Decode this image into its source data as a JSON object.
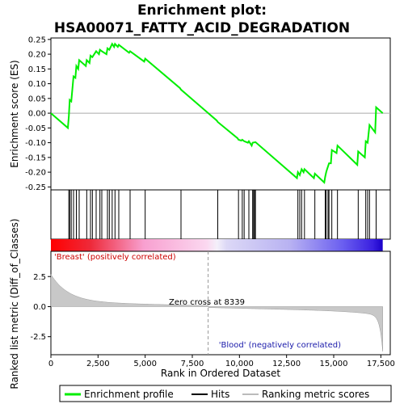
{
  "chart_data": {
    "type": "line",
    "title_line1": "Enrichment plot:",
    "title_line2": "HSA00071_FATTY_ACID_DEGRADATION",
    "xlabel": "Rank in Ordered Dataset",
    "ylabel_top": "Enrichment score (ES)",
    "ylabel_bottom": "Ranked list metric (Diff_of_Classes)",
    "xlim": [
      0,
      18000
    ],
    "x_ticks": [
      0,
      2500,
      5000,
      7500,
      10000,
      12500,
      15000,
      17500
    ],
    "x_tick_labels": [
      "0",
      "2,500",
      "5,000",
      "7,500",
      "10,000",
      "12,500",
      "15,000",
      "17,500"
    ],
    "es_ylim": [
      -0.26,
      0.255
    ],
    "es_ticks": [
      -0.25,
      -0.2,
      -0.15,
      -0.1,
      -0.05,
      0.0,
      0.05,
      0.1,
      0.15,
      0.2,
      0.25
    ],
    "es_tick_labels": [
      "-0.25",
      "-0.20",
      "-0.15",
      "-0.10",
      "-0.05",
      "0.00",
      "0.05",
      "0.10",
      "0.15",
      "0.20",
      "0.25"
    ],
    "metric_ylim": [
      -4.0,
      4.6
    ],
    "metric_ticks": [
      -2.5,
      0.0,
      2.5
    ],
    "metric_tick_labels": [
      "-2.5",
      "0.0",
      "2.5"
    ],
    "n_genes": 17600,
    "zero_cross_label": "Zero cross at 8339",
    "zero_cross": 8339,
    "pos_label": "'Breast' (positively correlated)",
    "neg_label": "'Blood' (negatively correlated)",
    "hits": [
      950,
      1000,
      1080,
      1200,
      1350,
      1500,
      1900,
      2100,
      2200,
      2400,
      2600,
      2700,
      3000,
      3100,
      3250,
      3400,
      3600,
      4200,
      5000,
      6900,
      8850,
      9950,
      10150,
      10250,
      10500,
      10700,
      10750,
      10800,
      10850,
      13100,
      13200,
      13300,
      13450,
      14000,
      14550,
      14600,
      14700,
      14750,
      14900,
      15200,
      16300,
      16700,
      16800,
      16900,
      17250
    ],
    "es_curve": [
      [
        0,
        0.0
      ],
      [
        900,
        -0.05
      ],
      [
        950,
        -0.01
      ],
      [
        1000,
        0.045
      ],
      [
        1080,
        0.04
      ],
      [
        1200,
        0.125
      ],
      [
        1300,
        0.12
      ],
      [
        1350,
        0.16
      ],
      [
        1450,
        0.15
      ],
      [
        1500,
        0.18
      ],
      [
        1850,
        0.16
      ],
      [
        1900,
        0.18
      ],
      [
        2050,
        0.17
      ],
      [
        2100,
        0.195
      ],
      [
        2200,
        0.19
      ],
      [
        2400,
        0.21
      ],
      [
        2550,
        0.2
      ],
      [
        2600,
        0.215
      ],
      [
        2700,
        0.21
      ],
      [
        2950,
        0.2
      ],
      [
        3000,
        0.22
      ],
      [
        3100,
        0.215
      ],
      [
        3250,
        0.235
      ],
      [
        3350,
        0.225
      ],
      [
        3400,
        0.235
      ],
      [
        3550,
        0.225
      ],
      [
        3600,
        0.232
      ],
      [
        4150,
        0.205
      ],
      [
        4200,
        0.21
      ],
      [
        4950,
        0.175
      ],
      [
        5000,
        0.185
      ],
      [
        6850,
        0.085
      ],
      [
        6900,
        0.08
      ],
      [
        8800,
        -0.025
      ],
      [
        8850,
        -0.03
      ],
      [
        9900,
        -0.085
      ],
      [
        9950,
        -0.09
      ],
      [
        10100,
        -0.093
      ],
      [
        10150,
        -0.09
      ],
      [
        10250,
        -0.095
      ],
      [
        10450,
        -0.1
      ],
      [
        10500,
        -0.095
      ],
      [
        10650,
        -0.11
      ],
      [
        10700,
        -0.1
      ],
      [
        10850,
        -0.098
      ],
      [
        13050,
        -0.22
      ],
      [
        13100,
        -0.2
      ],
      [
        13200,
        -0.21
      ],
      [
        13300,
        -0.19
      ],
      [
        13400,
        -0.2
      ],
      [
        13450,
        -0.19
      ],
      [
        13950,
        -0.22
      ],
      [
        14000,
        -0.205
      ],
      [
        14500,
        -0.235
      ],
      [
        14550,
        -0.215
      ],
      [
        14600,
        -0.2
      ],
      [
        14650,
        -0.19
      ],
      [
        14700,
        -0.18
      ],
      [
        14750,
        -0.17
      ],
      [
        14850,
        -0.17
      ],
      [
        14900,
        -0.125
      ],
      [
        15150,
        -0.135
      ],
      [
        15200,
        -0.11
      ],
      [
        16250,
        -0.175
      ],
      [
        16300,
        -0.13
      ],
      [
        16650,
        -0.15
      ],
      [
        16700,
        -0.095
      ],
      [
        16800,
        -0.1
      ],
      [
        16900,
        -0.04
      ],
      [
        17200,
        -0.065
      ],
      [
        17250,
        0.02
      ],
      [
        17600,
        0.0
      ]
    ],
    "series": [
      {
        "name": "Enrichment profile",
        "color": "#00ee00"
      },
      {
        "name": "Hits",
        "color": "#000000"
      },
      {
        "name": "Ranking metric scores",
        "color": "#bbbbbb"
      }
    ]
  }
}
